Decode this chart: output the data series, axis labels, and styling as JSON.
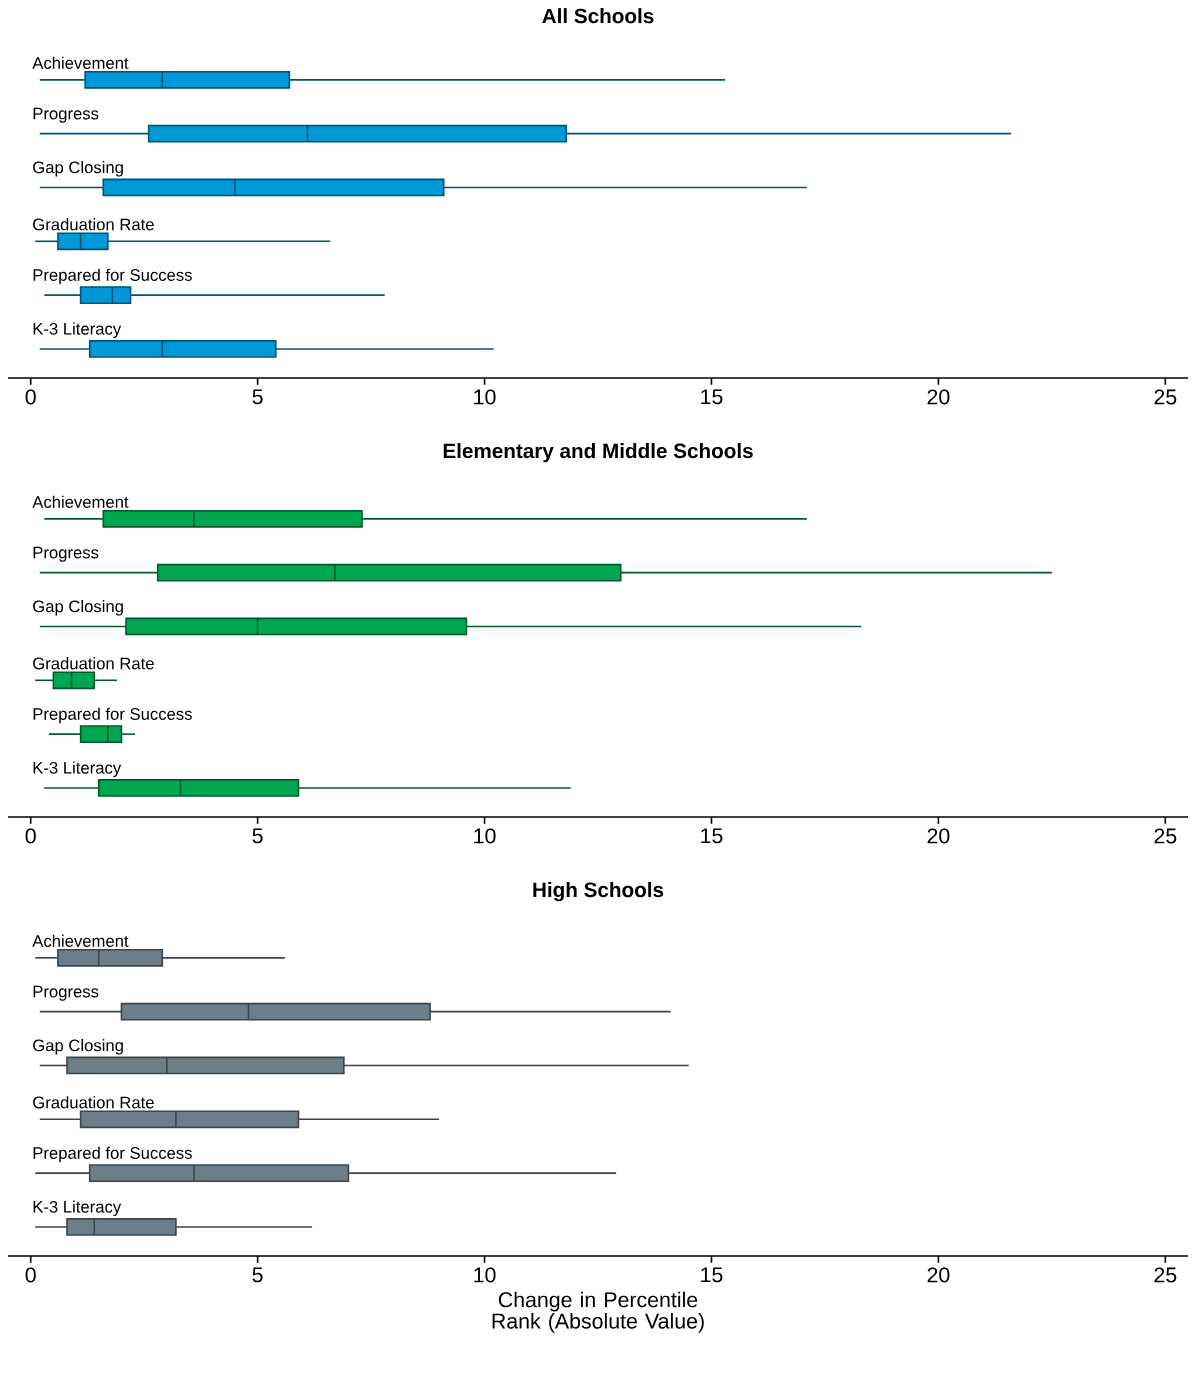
{
  "chart_data": [
    {
      "type": "box",
      "orientation": "horizontal",
      "title": "All Schools",
      "color": "#0099d8",
      "categories": [
        "Achievement",
        "Progress",
        "Gap Closing",
        "Graduation Rate",
        "Prepared for Success",
        "K-3 Literacy"
      ],
      "boxes": [
        {
          "low": 0.2,
          "q1": 1.2,
          "median": 2.9,
          "q3": 5.7,
          "high": 15.3
        },
        {
          "low": 0.2,
          "q1": 2.6,
          "median": 6.1,
          "q3": 11.8,
          "high": 21.6
        },
        {
          "low": 0.2,
          "q1": 1.6,
          "median": 4.5,
          "q3": 9.1,
          "high": 17.1
        },
        {
          "low": 0.1,
          "q1": 0.6,
          "median": 1.1,
          "q3": 1.7,
          "high": 6.6
        },
        {
          "low": 0.3,
          "q1": 1.1,
          "median": 1.8,
          "q3": 2.2,
          "high": 7.8
        },
        {
          "low": 0.2,
          "q1": 1.3,
          "median": 2.9,
          "q3": 5.4,
          "high": 10.2
        }
      ],
      "xlim": [
        -0.5,
        25.5
      ],
      "xticks": [
        0,
        5,
        10,
        15,
        20,
        25
      ]
    },
    {
      "type": "box",
      "orientation": "horizontal",
      "title": "Elementary and Middle Schools",
      "color": "#00a650",
      "categories": [
        "Achievement",
        "Progress",
        "Gap Closing",
        "Graduation Rate",
        "Prepared for Success",
        "K-3 Literacy"
      ],
      "boxes": [
        {
          "low": 0.3,
          "q1": 1.6,
          "median": 3.6,
          "q3": 7.3,
          "high": 17.1
        },
        {
          "low": 0.2,
          "q1": 2.8,
          "median": 6.7,
          "q3": 13.0,
          "high": 22.5
        },
        {
          "low": 0.2,
          "q1": 2.1,
          "median": 5.0,
          "q3": 9.6,
          "high": 18.3
        },
        {
          "low": 0.1,
          "q1": 0.5,
          "median": 0.9,
          "q3": 1.4,
          "high": 1.9
        },
        {
          "low": 0.4,
          "q1": 1.1,
          "median": 1.7,
          "q3": 2.0,
          "high": 2.3
        },
        {
          "low": 0.3,
          "q1": 1.5,
          "median": 3.3,
          "q3": 5.9,
          "high": 11.9
        }
      ],
      "xlim": [
        -0.5,
        25.5
      ],
      "xticks": [
        0,
        5,
        10,
        15,
        20,
        25
      ]
    },
    {
      "type": "box",
      "orientation": "horizontal",
      "title": "High Schools",
      "color": "#6e7e89",
      "xlabel": "Change in Percentile Rank (Absolute Value)",
      "categories": [
        "Achievement",
        "Progress",
        "Gap Closing",
        "Graduation Rate",
        "Prepared for Success",
        "K-3 Literacy"
      ],
      "boxes": [
        {
          "low": 0.1,
          "q1": 0.6,
          "median": 1.5,
          "q3": 2.9,
          "high": 5.6
        },
        {
          "low": 0.2,
          "q1": 2.0,
          "median": 4.8,
          "q3": 8.8,
          "high": 14.1
        },
        {
          "low": 0.2,
          "q1": 0.8,
          "median": 3.0,
          "q3": 6.9,
          "high": 14.5
        },
        {
          "low": 0.2,
          "q1": 1.1,
          "median": 3.2,
          "q3": 5.9,
          "high": 9.0
        },
        {
          "low": 0.1,
          "q1": 1.3,
          "median": 3.6,
          "q3": 7.0,
          "high": 12.9
        },
        {
          "low": 0.1,
          "q1": 0.8,
          "median": 1.4,
          "q3": 3.2,
          "high": 6.2
        }
      ],
      "xlim": [
        -0.5,
        25.5
      ],
      "xticks": [
        0,
        5,
        10,
        15,
        20,
        25
      ]
    }
  ]
}
